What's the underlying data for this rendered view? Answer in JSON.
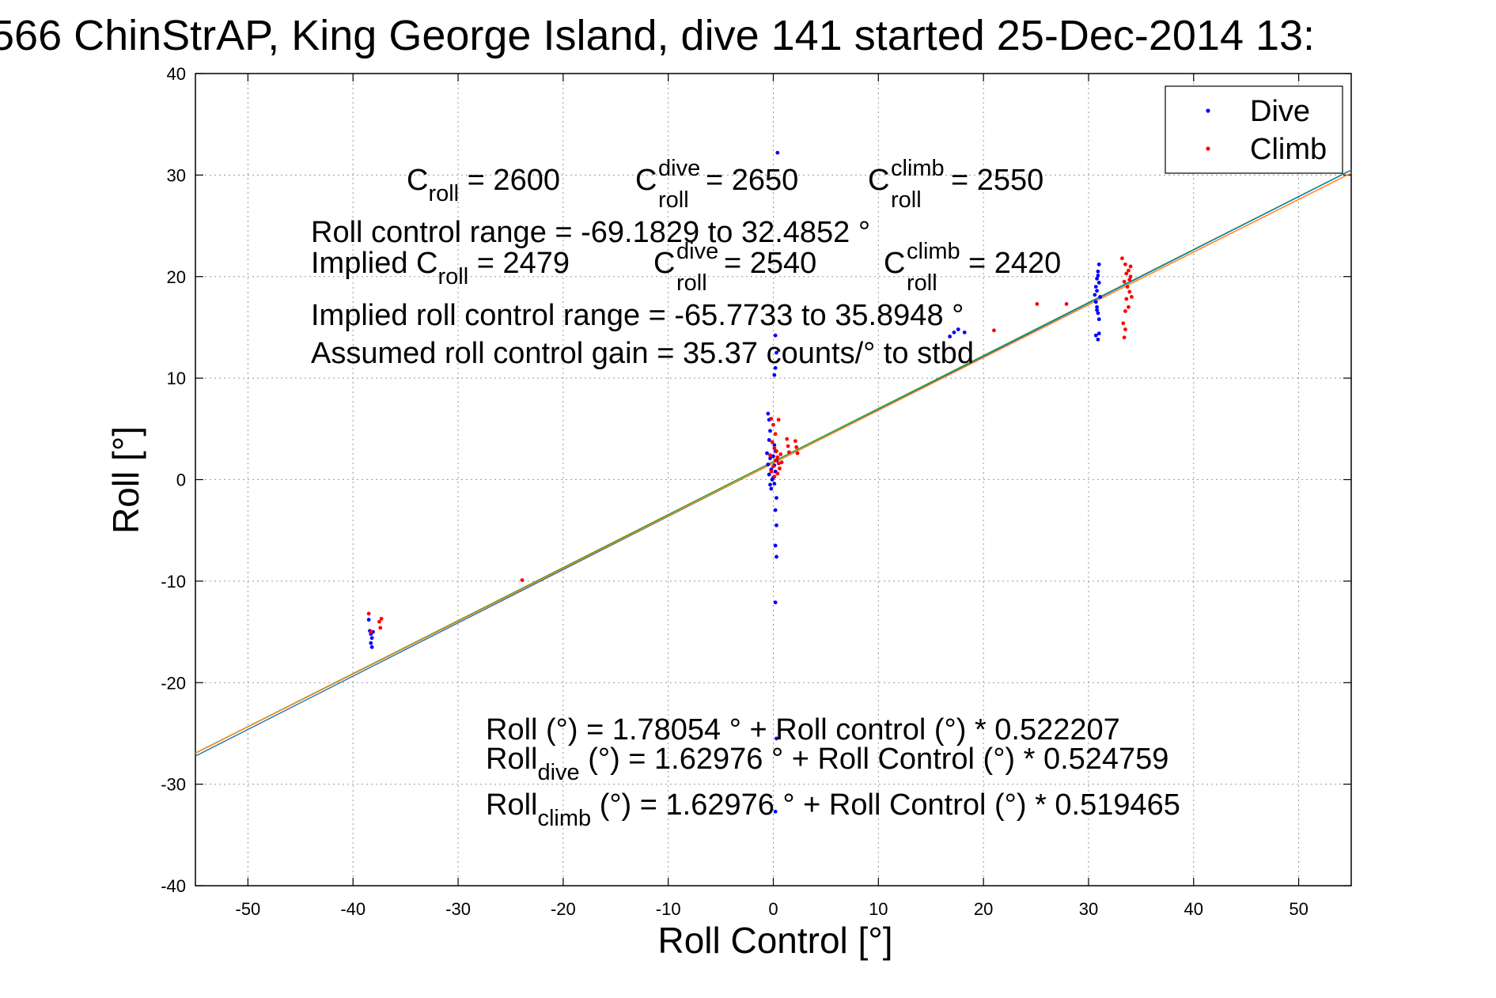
{
  "title": "566 ChinStrAP, King George Island, dive 141 started 25-Dec-2014 13:",
  "chart_data": {
    "type": "scatter",
    "xlabel": "Roll Control [°]",
    "ylabel": "Roll [°]",
    "xlim": [
      -55,
      55
    ],
    "ylim": [
      -40,
      40
    ],
    "xticks": [
      -50,
      -40,
      -30,
      -20,
      -10,
      0,
      10,
      20,
      30,
      40,
      50
    ],
    "yticks": [
      -40,
      -30,
      -20,
      -10,
      0,
      10,
      20,
      30,
      40
    ],
    "grid": true,
    "legend_position": "top-right",
    "series": [
      {
        "name": "Dive",
        "color": "#0000ff",
        "points": [
          [
            -38.5,
            -13.8
          ],
          [
            -38.4,
            -14.9
          ],
          [
            -38.3,
            -15.2
          ],
          [
            -38.2,
            -15.6
          ],
          [
            -38.3,
            -16.1
          ],
          [
            -38.2,
            -16.5
          ],
          [
            -38.1,
            -15.0
          ],
          [
            -0.5,
            6.5
          ],
          [
            -0.4,
            5.9
          ],
          [
            -0.3,
            4.8
          ],
          [
            -0.4,
            3.9
          ],
          [
            -0.6,
            2.6
          ],
          [
            -0.3,
            2.1
          ],
          [
            -0.5,
            1.5
          ],
          [
            -0.2,
            1.0
          ],
          [
            -0.4,
            0.5
          ],
          [
            -0.1,
            0.0
          ],
          [
            -0.3,
            -0.5
          ],
          [
            -0.2,
            -0.9
          ],
          [
            0.1,
            3.4
          ],
          [
            0.2,
            2.8
          ],
          [
            0.0,
            2.3
          ],
          [
            0.3,
            1.9
          ],
          [
            0.1,
            1.4
          ],
          [
            0.2,
            0.8
          ],
          [
            0.0,
            0.2
          ],
          [
            0.1,
            -0.4
          ],
          [
            0.3,
            -1.8
          ],
          [
            0.2,
            -3.0
          ],
          [
            0.3,
            -4.5
          ],
          [
            0.2,
            -6.5
          ],
          [
            0.3,
            -7.6
          ],
          [
            0.2,
            -12.1
          ],
          [
            0.4,
            32.2
          ],
          [
            0.2,
            14.2
          ],
          [
            0.3,
            12.5
          ],
          [
            0.2,
            11.0
          ],
          [
            0.1,
            10.3
          ],
          [
            0.3,
            -25.5
          ],
          [
            0.2,
            -32.7
          ],
          [
            16.8,
            14.1
          ],
          [
            17.2,
            14.5
          ],
          [
            17.6,
            14.8
          ],
          [
            18.2,
            14.5
          ],
          [
            30.6,
            18.2
          ],
          [
            30.7,
            19.0
          ],
          [
            30.8,
            19.8
          ],
          [
            30.9,
            20.5
          ],
          [
            31.0,
            21.2
          ],
          [
            30.7,
            17.5
          ],
          [
            30.8,
            17.0
          ],
          [
            30.9,
            16.4
          ],
          [
            31.0,
            15.8
          ],
          [
            30.8,
            18.6
          ],
          [
            31.0,
            19.4
          ],
          [
            30.9,
            20.1
          ],
          [
            30.7,
            14.2
          ],
          [
            30.9,
            13.8
          ],
          [
            31.0,
            14.4
          ],
          [
            30.8,
            16.7
          ],
          [
            31.1,
            18.0
          ]
        ]
      },
      {
        "name": "Climb",
        "color": "#ff0000",
        "points": [
          [
            -38.5,
            -13.2
          ],
          [
            -38.3,
            -15.0
          ],
          [
            -37.5,
            -14.0
          ],
          [
            -37.4,
            -14.6
          ],
          [
            -37.3,
            -13.7
          ],
          [
            -23.9,
            -9.9
          ],
          [
            -0.2,
            6.0
          ],
          [
            0.0,
            5.4
          ],
          [
            0.2,
            4.5
          ],
          [
            -0.1,
            3.7
          ],
          [
            0.1,
            3.1
          ],
          [
            -0.3,
            2.4
          ],
          [
            0.2,
            1.9
          ],
          [
            0.0,
            1.3
          ],
          [
            -0.2,
            0.8
          ],
          [
            0.1,
            0.3
          ],
          [
            0.3,
            2.8
          ],
          [
            0.4,
            2.2
          ],
          [
            0.5,
            1.6
          ],
          [
            0.6,
            1.1
          ],
          [
            0.4,
            0.6
          ],
          [
            0.5,
            5.9
          ],
          [
            0.7,
            2.5
          ],
          [
            0.8,
            1.7
          ],
          [
            1.3,
            4.0
          ],
          [
            1.4,
            3.3
          ],
          [
            1.5,
            2.7
          ],
          [
            2.1,
            3.8
          ],
          [
            2.2,
            3.2
          ],
          [
            2.3,
            2.6
          ],
          [
            25.1,
            17.3
          ],
          [
            27.9,
            17.3
          ],
          [
            21.0,
            14.7
          ],
          [
            33.2,
            21.8
          ],
          [
            33.5,
            21.2
          ],
          [
            33.8,
            20.6
          ],
          [
            34.0,
            20.0
          ],
          [
            33.4,
            19.5
          ],
          [
            33.7,
            19.0
          ],
          [
            33.9,
            18.5
          ],
          [
            33.6,
            17.8
          ],
          [
            33.8,
            17.0
          ],
          [
            33.3,
            15.4
          ],
          [
            33.5,
            14.8
          ],
          [
            33.4,
            14.0
          ],
          [
            34.0,
            21.0
          ],
          [
            33.9,
            19.7
          ],
          [
            33.6,
            20.3
          ],
          [
            34.1,
            18.0
          ],
          [
            33.5,
            16.6
          ]
        ]
      }
    ],
    "fit_lines": [
      {
        "name": "Roll",
        "intercept": 1.78054,
        "slope": 0.522207,
        "color": "#2ca02c"
      },
      {
        "name": "Roll dive",
        "intercept": 1.62976,
        "slope": 0.524759,
        "color": "#1f77b4"
      },
      {
        "name": "Roll climb",
        "intercept": 1.62976,
        "slope": 0.519465,
        "color": "#ff7f0e"
      }
    ]
  },
  "annotations": {
    "croll": {
      "C": "C",
      "sub": "roll",
      "rest": " = 2600"
    },
    "croll_dive": {
      "C": "C",
      "sup": "dive",
      "sub": "roll",
      "rest": " = 2650"
    },
    "croll_climb": {
      "C": "C",
      "sup": "climb",
      "sub": "roll",
      "rest": " = 2550"
    },
    "range": "Roll control range = -69.1829 to 32.4852 °",
    "implied_a": {
      "C": "Implied C",
      "sub": "roll",
      "rest": " = 2479"
    },
    "implied_b": {
      "C": "C",
      "sup": "dive",
      "sub": "roll",
      "rest": " = 2540"
    },
    "implied_c": {
      "C": "C",
      "sup": "climb",
      "sub": "roll",
      "rest": " = 2420"
    },
    "implied_range": "Implied roll control range = -65.7733 to 35.8948 °",
    "gain": "Assumed roll control gain = 35.37 counts/° to stbd",
    "eq1": "Roll (°) = 1.78054 ° + Roll control (°) * 0.522207",
    "eq2": {
      "a": "Roll",
      "sub": "dive",
      "b": " (°) = 1.62976 ° + Roll Control (°) * 0.524759"
    },
    "eq3": {
      "a": "Roll",
      "sub": "climb",
      "b": " (°) = 1.62976 ° + Roll Control (°) * 0.519465"
    }
  }
}
